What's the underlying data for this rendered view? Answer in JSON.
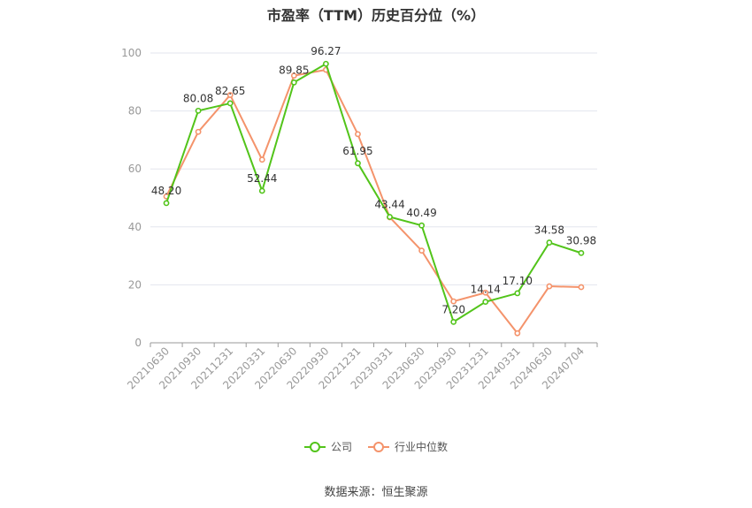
{
  "chart_data": {
    "type": "line",
    "title": "市盈率（TTM）历史百分位（%）",
    "categories": [
      "20210630",
      "20210930",
      "20211231",
      "20220331",
      "20220630",
      "20220930",
      "20221231",
      "20230331",
      "20230630",
      "20230930",
      "20231231",
      "20240331",
      "20240630",
      "20240704"
    ],
    "series": [
      {
        "name": "公司",
        "color": "#52c41a",
        "values": [
          48.2,
          80.08,
          82.65,
          52.44,
          89.85,
          96.27,
          61.95,
          43.44,
          40.49,
          7.2,
          14.14,
          17.1,
          34.58,
          30.98
        ],
        "labels": [
          "48.20",
          "80.08",
          "82.65",
          "52.44",
          "89.85",
          "96.27",
          "61.95",
          "43.44",
          "40.49",
          "7.20",
          "14.14",
          "17.10",
          "34.58",
          "30.98"
        ]
      },
      {
        "name": "行业中位数",
        "color": "#f4936b",
        "values": [
          50.5,
          72.8,
          85.5,
          63.2,
          92.2,
          94.2,
          72.0,
          43.3,
          31.8,
          14.3,
          17.3,
          3.3,
          19.5,
          19.2
        ]
      }
    ],
    "ylim": [
      0,
      100
    ],
    "yticks": [
      0,
      20,
      40,
      60,
      80,
      100
    ],
    "grid": true,
    "legend_position": "bottom"
  },
  "source_text": "数据来源：恒生聚源"
}
